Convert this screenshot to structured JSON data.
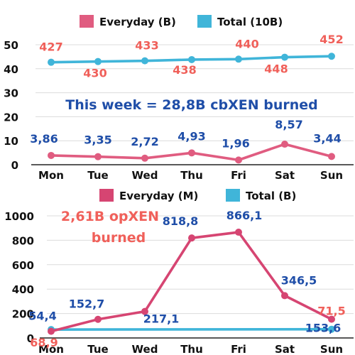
{
  "chart_data": [
    {
      "type": "line",
      "title": "",
      "xlabel": "",
      "ylabel": "",
      "categories": [
        "Mon",
        "Tue",
        "Wed",
        "Thu",
        "Fri",
        "Sat",
        "Sun"
      ],
      "ylim": [
        0,
        50
      ],
      "y_ticks": [
        "0",
        "10",
        "20",
        "30",
        "40",
        "50"
      ],
      "grid": true,
      "legend_position": "top",
      "annotation": "This week = 28,8B cbXEN burned",
      "series": [
        {
          "name": "Everyday (B)",
          "color": "#e05c80",
          "values": [
            3.86,
            3.35,
            2.72,
            4.93,
            1.96,
            8.57,
            3.44
          ],
          "labels": [
            "3,86",
            "3,35",
            "2,72",
            "4,93",
            "1,96",
            "8,57",
            "3,44"
          ],
          "label_color": "#1f4ea8"
        },
        {
          "name": "Total (10B)",
          "color": "#40b5d9",
          "values": [
            42.7,
            43.0,
            43.3,
            43.8,
            44.0,
            44.8,
            45.2
          ],
          "labels": [
            "427",
            "430",
            "433",
            "438",
            "440",
            "448",
            "452"
          ],
          "label_color": "#f0605a"
        }
      ]
    },
    {
      "type": "line",
      "title": "",
      "xlabel": "",
      "ylabel": "",
      "categories": [
        "Mon",
        "Tue",
        "Wed",
        "Thu",
        "Fri",
        "Sat",
        "Sun"
      ],
      "ylim": [
        0,
        1000
      ],
      "y_ticks": [
        "0",
        "200",
        "400",
        "600",
        "800",
        "1000"
      ],
      "grid": true,
      "legend_position": "top",
      "annotation": [
        "2,61B opXEN",
        "burned"
      ],
      "series": [
        {
          "name": "Everyday (M)",
          "color": "#d64572",
          "values": [
            54.4,
            152.7,
            217.1,
            818.8,
            866.1,
            346.5,
            153.6
          ],
          "labels": [
            "54,4",
            "152,7",
            "217,1",
            "818,8",
            "866,1",
            "346,5",
            "153,6"
          ],
          "label_color": "#1f4ea8"
        },
        {
          "name": "Total (B)",
          "color": "#40b5d9",
          "values": [
            68.9,
            null,
            null,
            null,
            null,
            null,
            71.5
          ],
          "labels": [
            "68,9",
            "",
            "",
            "",
            "",
            "",
            "71,5"
          ],
          "label_color": "#f0605a"
        }
      ]
    }
  ]
}
